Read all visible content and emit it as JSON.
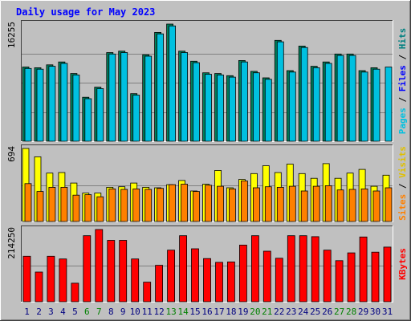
{
  "chart_data": {
    "type": "bar",
    "title": "Daily usage for May 2023",
    "days": [
      "1",
      "2",
      "3",
      "4",
      "5",
      "6",
      "7",
      "8",
      "9",
      "10",
      "11",
      "12",
      "13",
      "14",
      "15",
      "16",
      "17",
      "18",
      "19",
      "20",
      "21",
      "22",
      "23",
      "24",
      "25",
      "26",
      "27",
      "28",
      "29",
      "30",
      "31"
    ],
    "weekend_days": [
      "6",
      "7",
      "13",
      "14",
      "20",
      "21",
      "27",
      "28"
    ],
    "panels": [
      {
        "id": "hits",
        "max_label": "16255",
        "ymax": 16255,
        "ylabel_parts": [
          "Pages",
          "Files",
          "Hits"
        ],
        "series": [
          {
            "name": "Hits",
            "color": "#00805c",
            "values": [
              10300,
              10200,
              10600,
              11000,
              9400,
              6100,
              7500,
              12300,
              12500,
              6600,
              12000,
              15100,
              16255,
              12500,
              11100,
              9500,
              9400,
              9100,
              11200,
              9700,
              8800,
              14000,
              9800,
              13200,
              10400,
              11000,
              12100,
              12100,
              9800,
              10200,
              null
            ]
          },
          {
            "name": "Files",
            "color": "#00c0e0",
            "values": [
              10100,
              10000,
              10400,
              10800,
              9200,
              5900,
              7300,
              12100,
              12300,
              6400,
              11800,
              14900,
              16000,
              12300,
              10900,
              9300,
              9200,
              8900,
              11000,
              9500,
              8600,
              13800,
              9600,
              13000,
              10200,
              10800,
              11900,
              11900,
              9600,
              10000,
              10300
            ]
          }
        ]
      },
      {
        "id": "visits",
        "max_label": "694",
        "ymax": 694,
        "ylabel_parts": [
          "Sites",
          "Visits"
        ],
        "series": [
          {
            "name": "Visits",
            "color": "#ffff00",
            "values": [
              694,
              615,
              460,
              465,
              365,
              270,
              270,
              325,
              330,
              365,
              325,
              320,
              350,
              390,
              290,
              355,
              485,
              320,
              400,
              455,
              530,
              465,
              545,
              455,
              410,
              550,
              410,
              460,
              495,
              335,
              440
            ]
          },
          {
            "name": "Sites",
            "color": "#ff8000",
            "values": [
              360,
              285,
              325,
              325,
              250,
              255,
              235,
              310,
              305,
              310,
              305,
              315,
              350,
              355,
              285,
              345,
              335,
              310,
              385,
              320,
              330,
              325,
              335,
              290,
              335,
              340,
              300,
              305,
              310,
              290,
              320
            ]
          }
        ]
      },
      {
        "id": "kbytes",
        "max_label": "214250",
        "ymax": 214250,
        "ylabel_parts": [
          "KBytes"
        ],
        "series": [
          {
            "name": "KBytes",
            "color": "#ff0000",
            "values": [
              135000,
              88000,
              135000,
              127000,
              55000,
              196000,
              214250,
              182000,
              182000,
              127000,
              58000,
              108000,
              153000,
              196000,
              157000,
              128000,
              117000,
              118000,
              168000,
              196000,
              150000,
              129000,
              196000,
              196000,
              193000,
              153000,
              122000,
              145000,
              192000,
              147000,
              162000
            ]
          }
        ]
      }
    ],
    "colors": {
      "title": "#0000ff",
      "plot_bg": "#c0c0c0",
      "page_bg": "#c0c0c0",
      "gridline": "#808080",
      "day_weekday": "#000080",
      "day_weekend": "#008000",
      "label_pages": "#00c0e0",
      "label_files": "#0000ff",
      "label_hits": "#008080",
      "label_sites": "#ff8000",
      "label_visits": "#e0c000",
      "label_kbytes": "#ff0000",
      "label_sep": "#000000"
    }
  }
}
